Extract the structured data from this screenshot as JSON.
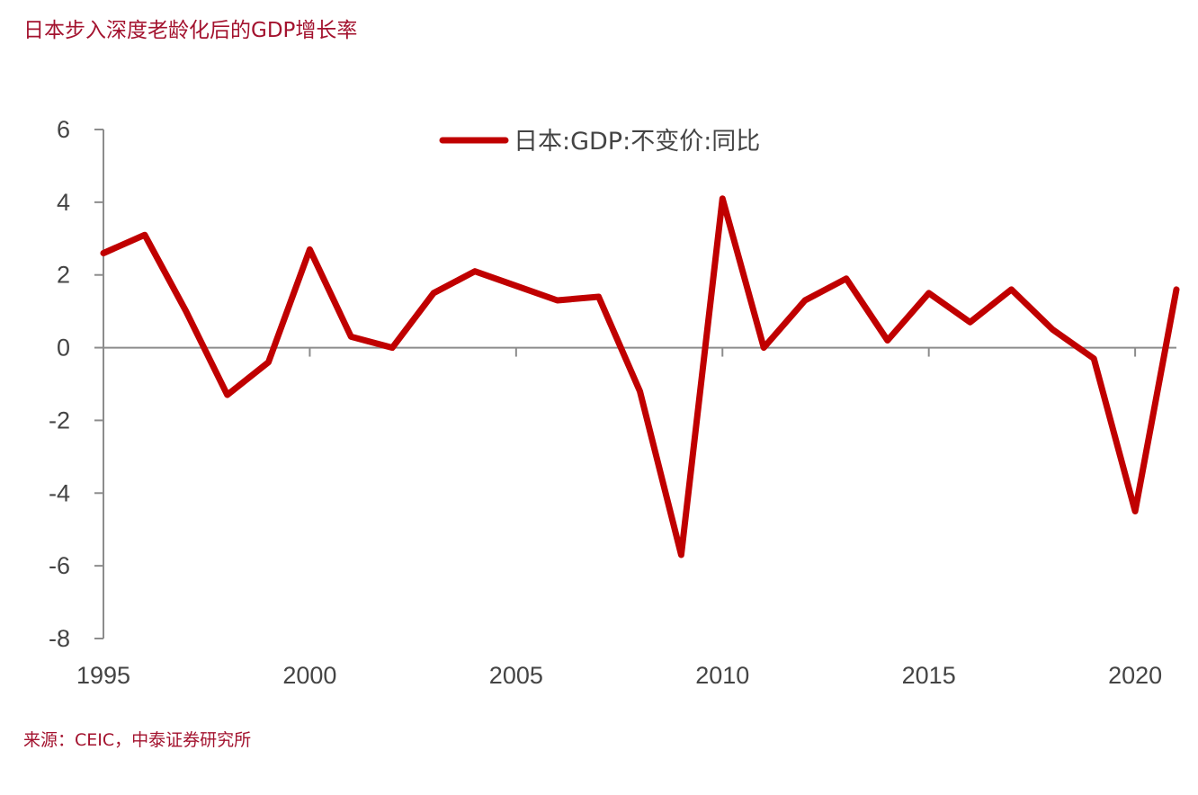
{
  "title": "日本步入深度老龄化后的GDP增长率",
  "source": "来源：CEIC，中泰证券研究所",
  "chart_data": {
    "type": "line",
    "title": "日本步入深度老龄化后的GDP增长率",
    "xlabel": "",
    "ylabel": "",
    "xlim": [
      1995,
      2021
    ],
    "ylim": [
      -8,
      6
    ],
    "yticks": [
      6,
      4,
      2,
      0,
      -2,
      -4,
      -6,
      -8
    ],
    "xticks": [
      1995,
      2000,
      2005,
      2010,
      2015,
      2020
    ],
    "legend_position": "top-center",
    "grid": false,
    "series": [
      {
        "name": "日本:GDP:不变价:同比",
        "color": "#c00000",
        "x": [
          1995,
          1996,
          1997,
          1998,
          1999,
          2000,
          2001,
          2002,
          2003,
          2004,
          2005,
          2006,
          2007,
          2008,
          2009,
          2010,
          2011,
          2012,
          2013,
          2014,
          2015,
          2016,
          2017,
          2018,
          2019,
          2020,
          2021
        ],
        "values": [
          2.6,
          3.1,
          1.0,
          -1.3,
          -0.4,
          2.7,
          0.3,
          0.0,
          1.5,
          2.1,
          1.7,
          1.3,
          1.4,
          -1.2,
          -5.7,
          4.1,
          0.0,
          1.3,
          1.9,
          0.2,
          1.5,
          0.7,
          1.6,
          0.5,
          -0.3,
          -4.5,
          1.6
        ]
      }
    ]
  }
}
